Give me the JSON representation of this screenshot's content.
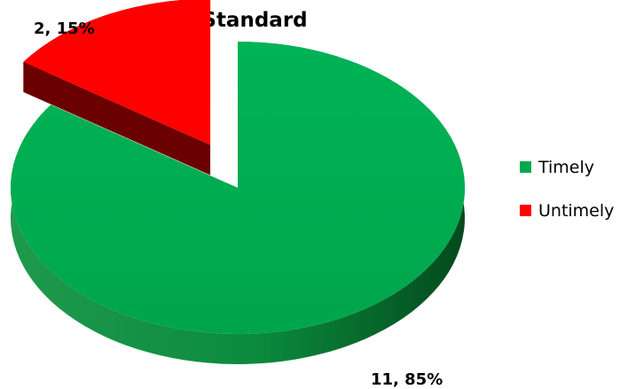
{
  "chart_data": {
    "type": "pie",
    "title": "Standard",
    "categories": [
      "Timely",
      "Untimely"
    ],
    "values": [
      11,
      2
    ],
    "percents": [
      85,
      15
    ],
    "data_labels": [
      "11, 85%",
      "2, 15%"
    ],
    "colors": [
      "#00a94f",
      "#ff0000"
    ],
    "legend": {
      "position": "right",
      "items": [
        "Timely",
        "Untimely"
      ]
    },
    "exploded": [
      "Untimely"
    ],
    "style": "3d"
  }
}
